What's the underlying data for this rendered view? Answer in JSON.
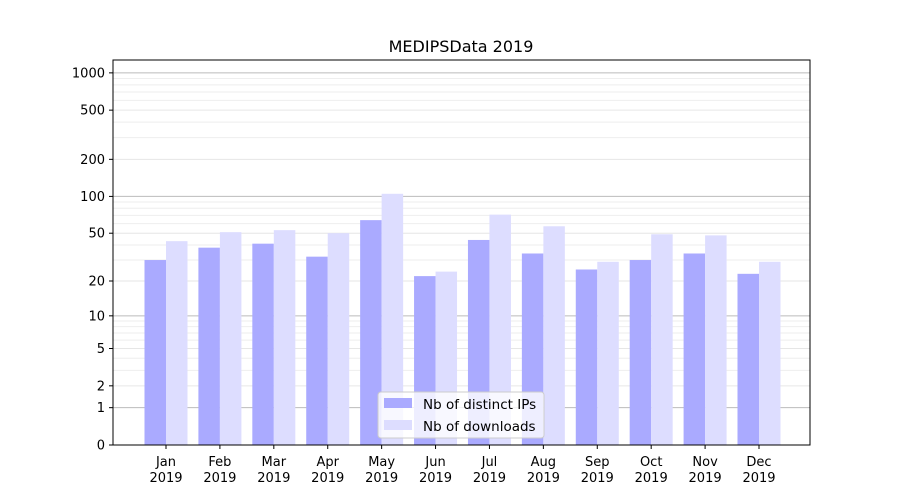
{
  "chart_data": {
    "type": "bar",
    "title": "MEDIPSData 2019",
    "xlabel": "",
    "ylabel": "",
    "yscale": "log10(1+y)",
    "ylim": [
      0,
      1270
    ],
    "yticks": [
      0,
      1,
      2,
      5,
      10,
      20,
      50,
      100,
      200,
      500,
      1000
    ],
    "ytick_labels": [
      "0",
      "1",
      "2",
      "5",
      "10",
      "20",
      "50",
      "100",
      "200",
      "500",
      "1000"
    ],
    "grid": true,
    "legend_position": "bottom-center",
    "categories": [
      [
        "Jan",
        "2019"
      ],
      [
        "Feb",
        "2019"
      ],
      [
        "Mar",
        "2019"
      ],
      [
        "Apr",
        "2019"
      ],
      [
        "May",
        "2019"
      ],
      [
        "Jun",
        "2019"
      ],
      [
        "Jul",
        "2019"
      ],
      [
        "Aug",
        "2019"
      ],
      [
        "Sep",
        "2019"
      ],
      [
        "Oct",
        "2019"
      ],
      [
        "Nov",
        "2019"
      ],
      [
        "Dec",
        "2019"
      ]
    ],
    "series": [
      {
        "name": "Nb of distinct IPs",
        "color": "#aaaaff",
        "values": [
          30,
          38,
          41,
          32,
          64,
          22,
          44,
          34,
          25,
          30,
          34,
          23
        ]
      },
      {
        "name": "Nb of downloads",
        "color": "#ddddff",
        "values": [
          43,
          51,
          53,
          50,
          105,
          24,
          71,
          57,
          29,
          49,
          48,
          29
        ]
      }
    ]
  }
}
